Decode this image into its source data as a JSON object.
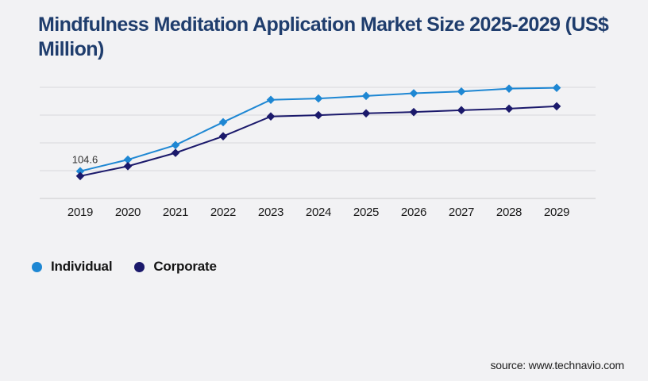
{
  "page": {
    "title": "Mindfulness Meditation Application Market Size 2025-2029 (US$ Million)",
    "title_color": "#1f3d6d",
    "background_color": "#f2f2f4",
    "source_text": "source: www.technavio.com"
  },
  "legend": {
    "items": [
      {
        "label": "Individual",
        "color": "#1e87d3"
      },
      {
        "label": "Corporate",
        "color": "#1b196b"
      }
    ]
  },
  "chart_data": {
    "type": "line",
    "title": "Mindfulness Meditation Application Market Size 2025-2029 (US$ Million)",
    "units": "US$ Million",
    "categories": [
      "2019",
      "2020",
      "2021",
      "2022",
      "2023",
      "2024",
      "2025",
      "2026",
      "2027",
      "2028",
      "2029"
    ],
    "series": [
      {
        "name": "Individual",
        "color": "#1e87d3",
        "marker": "diamond",
        "values": [
          104.6,
          149,
          205,
          293,
          379,
          384,
          394,
          404,
          411,
          422,
          425
        ]
      },
      {
        "name": "Corporate",
        "color": "#1b196b",
        "marker": "diamond",
        "values": [
          86,
          124,
          175,
          239,
          315,
          320,
          327,
          332,
          339,
          345,
          354
        ]
      }
    ],
    "annotations": [
      {
        "text": "104.6",
        "series": "Individual",
        "category": "2019"
      }
    ],
    "xlabel": "",
    "ylabel": "",
    "ylim": [
      0,
      427
    ],
    "y_axis_labels_visible": false,
    "grid": "horizontal",
    "gridline_color": "#d8d8db",
    "axis_line_color": "#c9c9cd",
    "x_tick_label_color": "#1a1a1a",
    "legend_position": "bottom-left"
  }
}
